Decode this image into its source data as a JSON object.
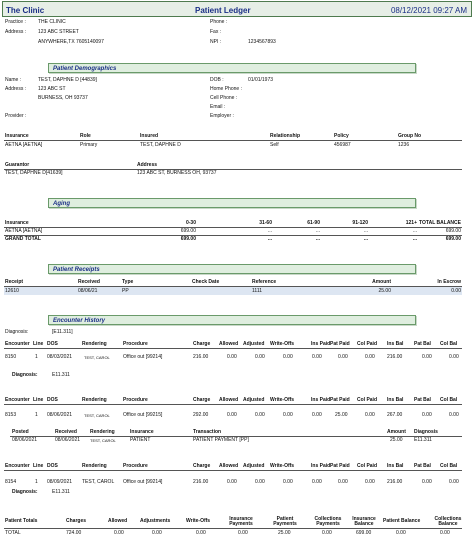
{
  "header": {
    "clinic": "The Clinic",
    "title": "Patient Ledger",
    "datetime": "08/12/2021 09:27 AM"
  },
  "practice": {
    "practice_label": "Practice :",
    "practice_value": "THE CLINIC",
    "address_label": "Address :",
    "address1": "123 ABC STREET",
    "address2": "ANYWHERE,TX 7605140097",
    "phone_label": "Phone :",
    "fax_label": "Fax :",
    "npi_label": "NPI :",
    "npi_value": "1234567893"
  },
  "sections": {
    "demographics": "Patient Demographics",
    "aging": "Aging",
    "receipts": "Patient Receipts",
    "encounter": "Encounter History"
  },
  "demographics": {
    "name_label": "Name :",
    "name_value": "TEST, DAPHNE D [44839]",
    "address_label": "Address :",
    "address1": "123 ABC ST",
    "address2": "BURNESS, OH 93737",
    "provider_label": "Provider :",
    "dob_label": "DOB :",
    "dob_value": "01/01/1973",
    "home_phone_label": "Home Phone :",
    "cell_phone_label": "Cell Phone :",
    "email_label": "Email :",
    "employer_label": "Employer :"
  },
  "insurance": {
    "headers": [
      "Insurance",
      "Role",
      "Insured",
      "Relationship",
      "Policy",
      "Group No"
    ],
    "row": [
      "AETNA [AETNA]",
      "Primary",
      "TEST, DAPHNE D",
      "Self",
      "456987",
      "1236"
    ]
  },
  "guarantor": {
    "headers": [
      "Guarantor",
      "Address"
    ],
    "row": [
      "TEST, DAPHNE D[41639]",
      "123 ABC ST, BURNESS OH, 93737"
    ]
  },
  "aging": {
    "headers": [
      "Insurance",
      "0-30",
      "31-60",
      "61-90",
      "91-120",
      "121+",
      "TOTAL BALANCE"
    ],
    "rows": [
      [
        "AETNA [AETNA]",
        "699.00",
        "...",
        "...",
        "...",
        "...",
        "699.00"
      ],
      [
        "GRAND TOTAL",
        "699.00",
        "...",
        "...",
        "...",
        "...",
        "699.00"
      ]
    ]
  },
  "receipts": {
    "headers": [
      "Receipt",
      "Received",
      "Type",
      "Check Date",
      "Reference",
      "Amount",
      "In Escrow"
    ],
    "row": [
      "12610",
      "08/06/21",
      "PP",
      "",
      "1111",
      "25.00",
      "0.00"
    ]
  },
  "encounter": {
    "diagnosis_label": "Diagnosis:",
    "diagnosis_value": "[E11.311]",
    "headers": [
      "Encounter",
      "Line",
      "DOS",
      "Rendering",
      "Procedure",
      "Charge",
      "Allowed",
      "Adjusted",
      "Write-Offs",
      "Ins Paid",
      "Pat Paid",
      "Col Paid",
      "Ins Bal",
      "Pat Bal",
      "Col Bal"
    ],
    "enc1": {
      "row": [
        "8150",
        "1",
        "08/03/2021",
        "TEST, CAROL",
        "Office out [99214]",
        "216.00",
        "0.00",
        "0.00",
        "0.00",
        "0.00",
        "0.00",
        "0.00",
        "216.00",
        "0.00",
        "0.00"
      ],
      "diag_label": "Diagnosis:",
      "diag_value": "E11.311"
    },
    "enc2": {
      "row": [
        "8153",
        "1",
        "08/06/2021",
        "TEST, CAROL",
        "Office out [99215]",
        "292.00",
        "0.00",
        "0.00",
        "0.00",
        "0.00",
        "25.00",
        "0.00",
        "267.00",
        "0.00",
        "0.00"
      ]
    },
    "posted": {
      "headers": [
        "Posted",
        "Received",
        "Rendering",
        "Insurance",
        "Transaction",
        "Amount",
        "Diagnosis"
      ],
      "row": [
        "08/06/2021",
        "08/06/2021",
        "TEST, CAROL",
        "PATIENT",
        "PATIENT PAYMENT [PP]",
        "25.00",
        "E11.311"
      ]
    },
    "enc3": {
      "row": [
        "8154",
        "1",
        "08/09/2021",
        "TEST, CAROL",
        "Office out [99214]",
        "216.00",
        "0.00",
        "0.00",
        "0.00",
        "0.00",
        "0.00",
        "0.00",
        "216.00",
        "0.00",
        "0.00"
      ],
      "diag_label": "Diagnosis:",
      "diag_value": "E11.311"
    }
  },
  "totals": {
    "headers": [
      "Patient Totals",
      "Charges",
      "Allowed",
      "Adjustments",
      "Write-Offs",
      "Insurance Payments",
      "Patient Payments",
      "Collections Payments",
      "Insurance Balance",
      "Patient Balance",
      "Collections Balance"
    ],
    "row": [
      "TOTAL",
      "724.00",
      "0.00",
      "0.00",
      "0.00",
      "0.00",
      "25.00",
      "0.00",
      "699.00",
      "0.00",
      "0.00"
    ]
  }
}
